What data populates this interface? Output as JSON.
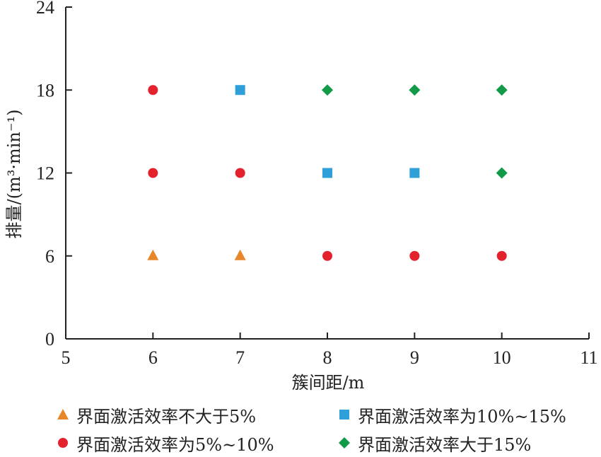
{
  "chart_data": {
    "type": "scatter",
    "xlabel": "簇间距/m",
    "ylabel": "排量/(m³·min⁻¹)",
    "xlim": [
      5,
      11
    ],
    "ylim": [
      0,
      24
    ],
    "xticks": [
      5,
      6,
      7,
      8,
      9,
      10,
      11
    ],
    "yticks": [
      0,
      6,
      12,
      18,
      24
    ],
    "grid": false,
    "legend_position": "bottom",
    "series": [
      {
        "name": "界面激活效率不大于5%",
        "marker": "triangle",
        "color": "#e8862a",
        "points": [
          [
            6,
            6
          ],
          [
            7,
            6
          ]
        ]
      },
      {
        "name": "界面激活效率为10%~15%",
        "marker": "square",
        "color": "#2e9fd9",
        "points": [
          [
            7,
            18
          ],
          [
            8,
            12
          ],
          [
            9,
            12
          ]
        ]
      },
      {
        "name": "界面激活效率为5%~10%",
        "marker": "circle",
        "color": "#e4222e",
        "points": [
          [
            6,
            18
          ],
          [
            6,
            12
          ],
          [
            7,
            12
          ],
          [
            8,
            6
          ],
          [
            9,
            6
          ],
          [
            10,
            6
          ]
        ]
      },
      {
        "name": "界面激活效率大于15%",
        "marker": "diamond",
        "color": "#119a48",
        "points": [
          [
            8,
            18
          ],
          [
            9,
            18
          ],
          [
            10,
            18
          ],
          [
            10,
            12
          ]
        ]
      }
    ]
  }
}
